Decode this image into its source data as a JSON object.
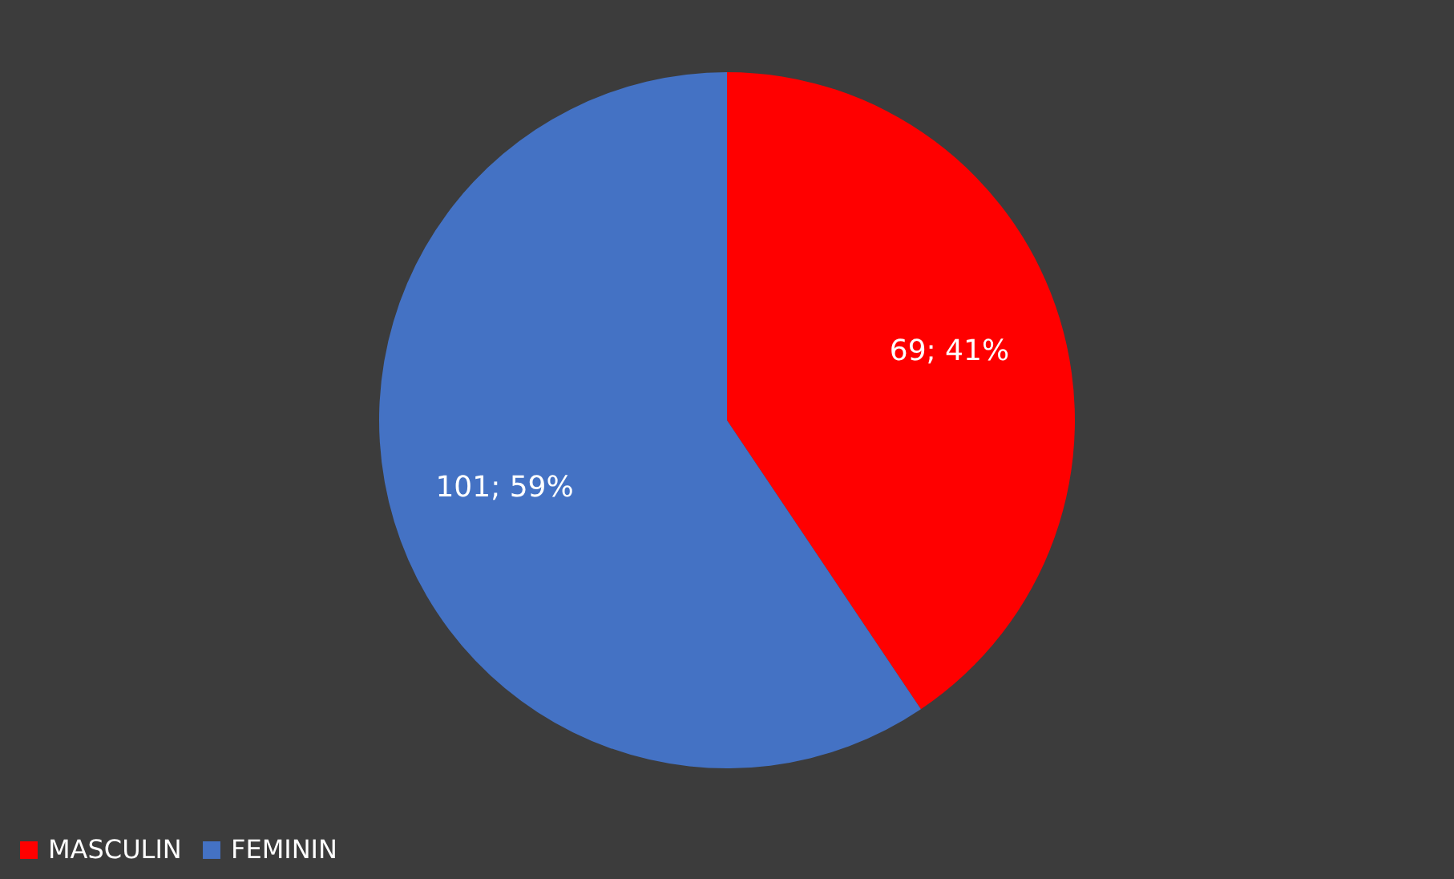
{
  "chart_data": {
    "type": "pie",
    "categories": [
      "MASCULIN",
      "FEMININ"
    ],
    "values": [
      69,
      101
    ],
    "colors": [
      "#ff0000",
      "#4472c4"
    ],
    "value_labels": [
      "69; 41%",
      "101; 59%"
    ],
    "legend": "bottom"
  }
}
